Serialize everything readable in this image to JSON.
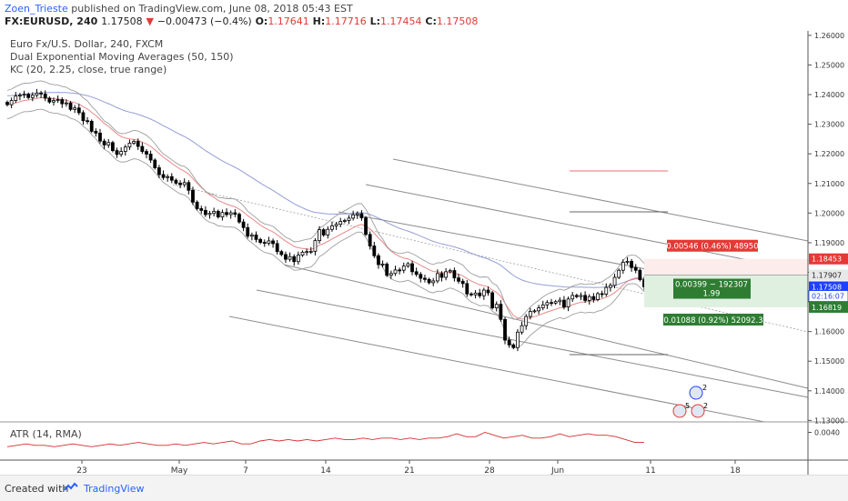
{
  "header": {
    "user": "Zoen_Trieste",
    "published": "published on TradingView.com, June 08, 2018 05:43 EST",
    "symbol": "FX:EURUSD, 240",
    "last": "1.17508",
    "change": "−0.00473 (−0.4%)",
    "o_label": "O:",
    "o": "1.17641",
    "h_label": "H:",
    "h": "1.17716",
    "l_label": "L:",
    "l": "1.17454",
    "c_label": "C:",
    "c": "1.17508"
  },
  "legend": {
    "title": "Euro Fx/U.S. Dollar, 240, FXCM",
    "dema": "Dual Exponential Moving Averages (50, 150)",
    "kc": "KC (20, 2.25, close, true range)",
    "atr": "ATR (14, RMA)"
  },
  "footer": {
    "created": "Created with",
    "brand": "TradingView"
  },
  "colors": {
    "up": "#000000",
    "down": "#000000",
    "ma_fast": "#e57373",
    "ma_slow": "#7986cb",
    "kc": "#9e9e9e",
    "atr": "#d32f2f",
    "target": "#2e7d32",
    "stop": "#e53935"
  },
  "chart_data": {
    "type": "candlestick",
    "title": "Euro Fx/U.S. Dollar, 240, FXCM",
    "x_ticks": [
      "23",
      "May",
      "7",
      "14",
      "21",
      "28",
      "Jun",
      "11",
      "18"
    ],
    "y_ticks": [
      "1.26000",
      "1.25000",
      "1.24000",
      "1.23000",
      "1.22000",
      "1.21000",
      "1.20000",
      "1.19000",
      "1.18000",
      "1.17000",
      "1.16000",
      "1.15000",
      "1.14000",
      "1.13000"
    ],
    "ylim": [
      1.1295,
      1.2615
    ],
    "price_labels": [
      {
        "text": "1.18453",
        "value": 1.18453,
        "color": "#e53935"
      },
      {
        "text": "1.17907",
        "value": 1.17907,
        "color": "#e8e8e8"
      },
      {
        "text": "1.17508",
        "value": 1.17508,
        "color": "#1e40ff"
      },
      {
        "text": "02:16:07",
        "value": 1.172,
        "color": "#ffffff"
      },
      {
        "text": "1.16819",
        "value": 1.16819,
        "color": "#2e7d32"
      }
    ],
    "position_box": {
      "stop_label": "0.00546 (0.46%) 48950",
      "entry_label_1": "0.00399 ~ 192307",
      "entry_label_2": "1.99",
      "target_label": "0.01088 (0.92%) 52092.3",
      "entry": 1.17907,
      "stop": 1.18453,
      "target": 1.16819
    },
    "atr_tick": "0.0040",
    "atr_ylim": [
      0.0022,
      0.0046
    ],
    "close_series": [
      1.2366,
      1.238,
      1.2395,
      1.2398,
      1.2401,
      1.239,
      1.2398,
      1.2405,
      1.2402,
      1.2388,
      1.2375,
      1.238,
      1.2383,
      1.2369,
      1.2372,
      1.235,
      1.2355,
      1.2339,
      1.2312,
      1.231,
      1.2276,
      1.227,
      1.2243,
      1.223,
      1.2238,
      1.2211,
      1.2198,
      1.2208,
      1.2223,
      1.2236,
      1.2242,
      1.2225,
      1.2208,
      1.2199,
      1.2179,
      1.2153,
      1.213,
      1.212,
      1.2123,
      1.2111,
      1.2101,
      1.2096,
      1.2103,
      1.2077,
      1.2037,
      1.2015,
      1.2009,
      1.1995,
      1.1999,
      1.2006,
      1.1987,
      1.2002,
      1.1995,
      1.2001,
      1.1996,
      1.197,
      1.1951,
      1.1922,
      1.1926,
      1.1911,
      1.1901,
      1.1898,
      1.1906,
      1.1897,
      1.187,
      1.186,
      1.1844,
      1.1853,
      1.1836,
      1.1858,
      1.1868,
      1.187,
      1.1871,
      1.1907,
      1.1944,
      1.1926,
      1.1945,
      1.1957,
      1.1962,
      1.1972,
      1.1975,
      1.1983,
      1.1994,
      1.1998,
      1.1984,
      1.1928,
      1.1889,
      1.1856,
      1.1826,
      1.1828,
      1.179,
      1.1796,
      1.1808,
      1.1807,
      1.1821,
      1.1829,
      1.1802,
      1.1793,
      1.178,
      1.1776,
      1.1765,
      1.1771,
      1.1796,
      1.1783,
      1.1802,
      1.1806,
      1.1781,
      1.177,
      1.1762,
      1.1727,
      1.1724,
      1.173,
      1.1721,
      1.174,
      1.1731,
      1.168,
      1.1692,
      1.1641,
      1.1571,
      1.1555,
      1.1546,
      1.1598,
      1.162,
      1.1651,
      1.1668,
      1.167,
      1.168,
      1.169,
      1.1698,
      1.1696,
      1.1701,
      1.1706,
      1.1683,
      1.171,
      1.1722,
      1.1718,
      1.1722,
      1.1705,
      1.1718,
      1.1708,
      1.1728,
      1.1726,
      1.1749,
      1.1756,
      1.1783,
      1.1807,
      1.1834,
      1.1837,
      1.1816,
      1.1807,
      1.1775,
      1.1751
    ],
    "atr_series": [
      0.003,
      0.0031,
      0.0032,
      0.0031,
      0.0031,
      0.003,
      0.0031,
      0.0032,
      0.0031,
      0.003,
      0.0031,
      0.0032,
      0.0031,
      0.0032,
      0.0033,
      0.0032,
      0.0031,
      0.0031,
      0.0032,
      0.0031,
      0.0032,
      0.0033,
      0.0032,
      0.0033,
      0.0034,
      0.0032,
      0.0032,
      0.0034,
      0.0035,
      0.0034,
      0.0035,
      0.0034,
      0.0035,
      0.0034,
      0.0035,
      0.0036,
      0.0035,
      0.0035,
      0.0036,
      0.0035,
      0.0036,
      0.0036,
      0.0035,
      0.0036,
      0.0035,
      0.0036,
      0.0036,
      0.0037,
      0.0039,
      0.0037,
      0.0037,
      0.004,
      0.0038,
      0.0036,
      0.0037,
      0.0038,
      0.0036,
      0.0036,
      0.0037,
      0.0039,
      0.0037,
      0.0038,
      0.0039,
      0.0038,
      0.0038,
      0.0037,
      0.0035,
      0.0033,
      0.0033
    ]
  }
}
